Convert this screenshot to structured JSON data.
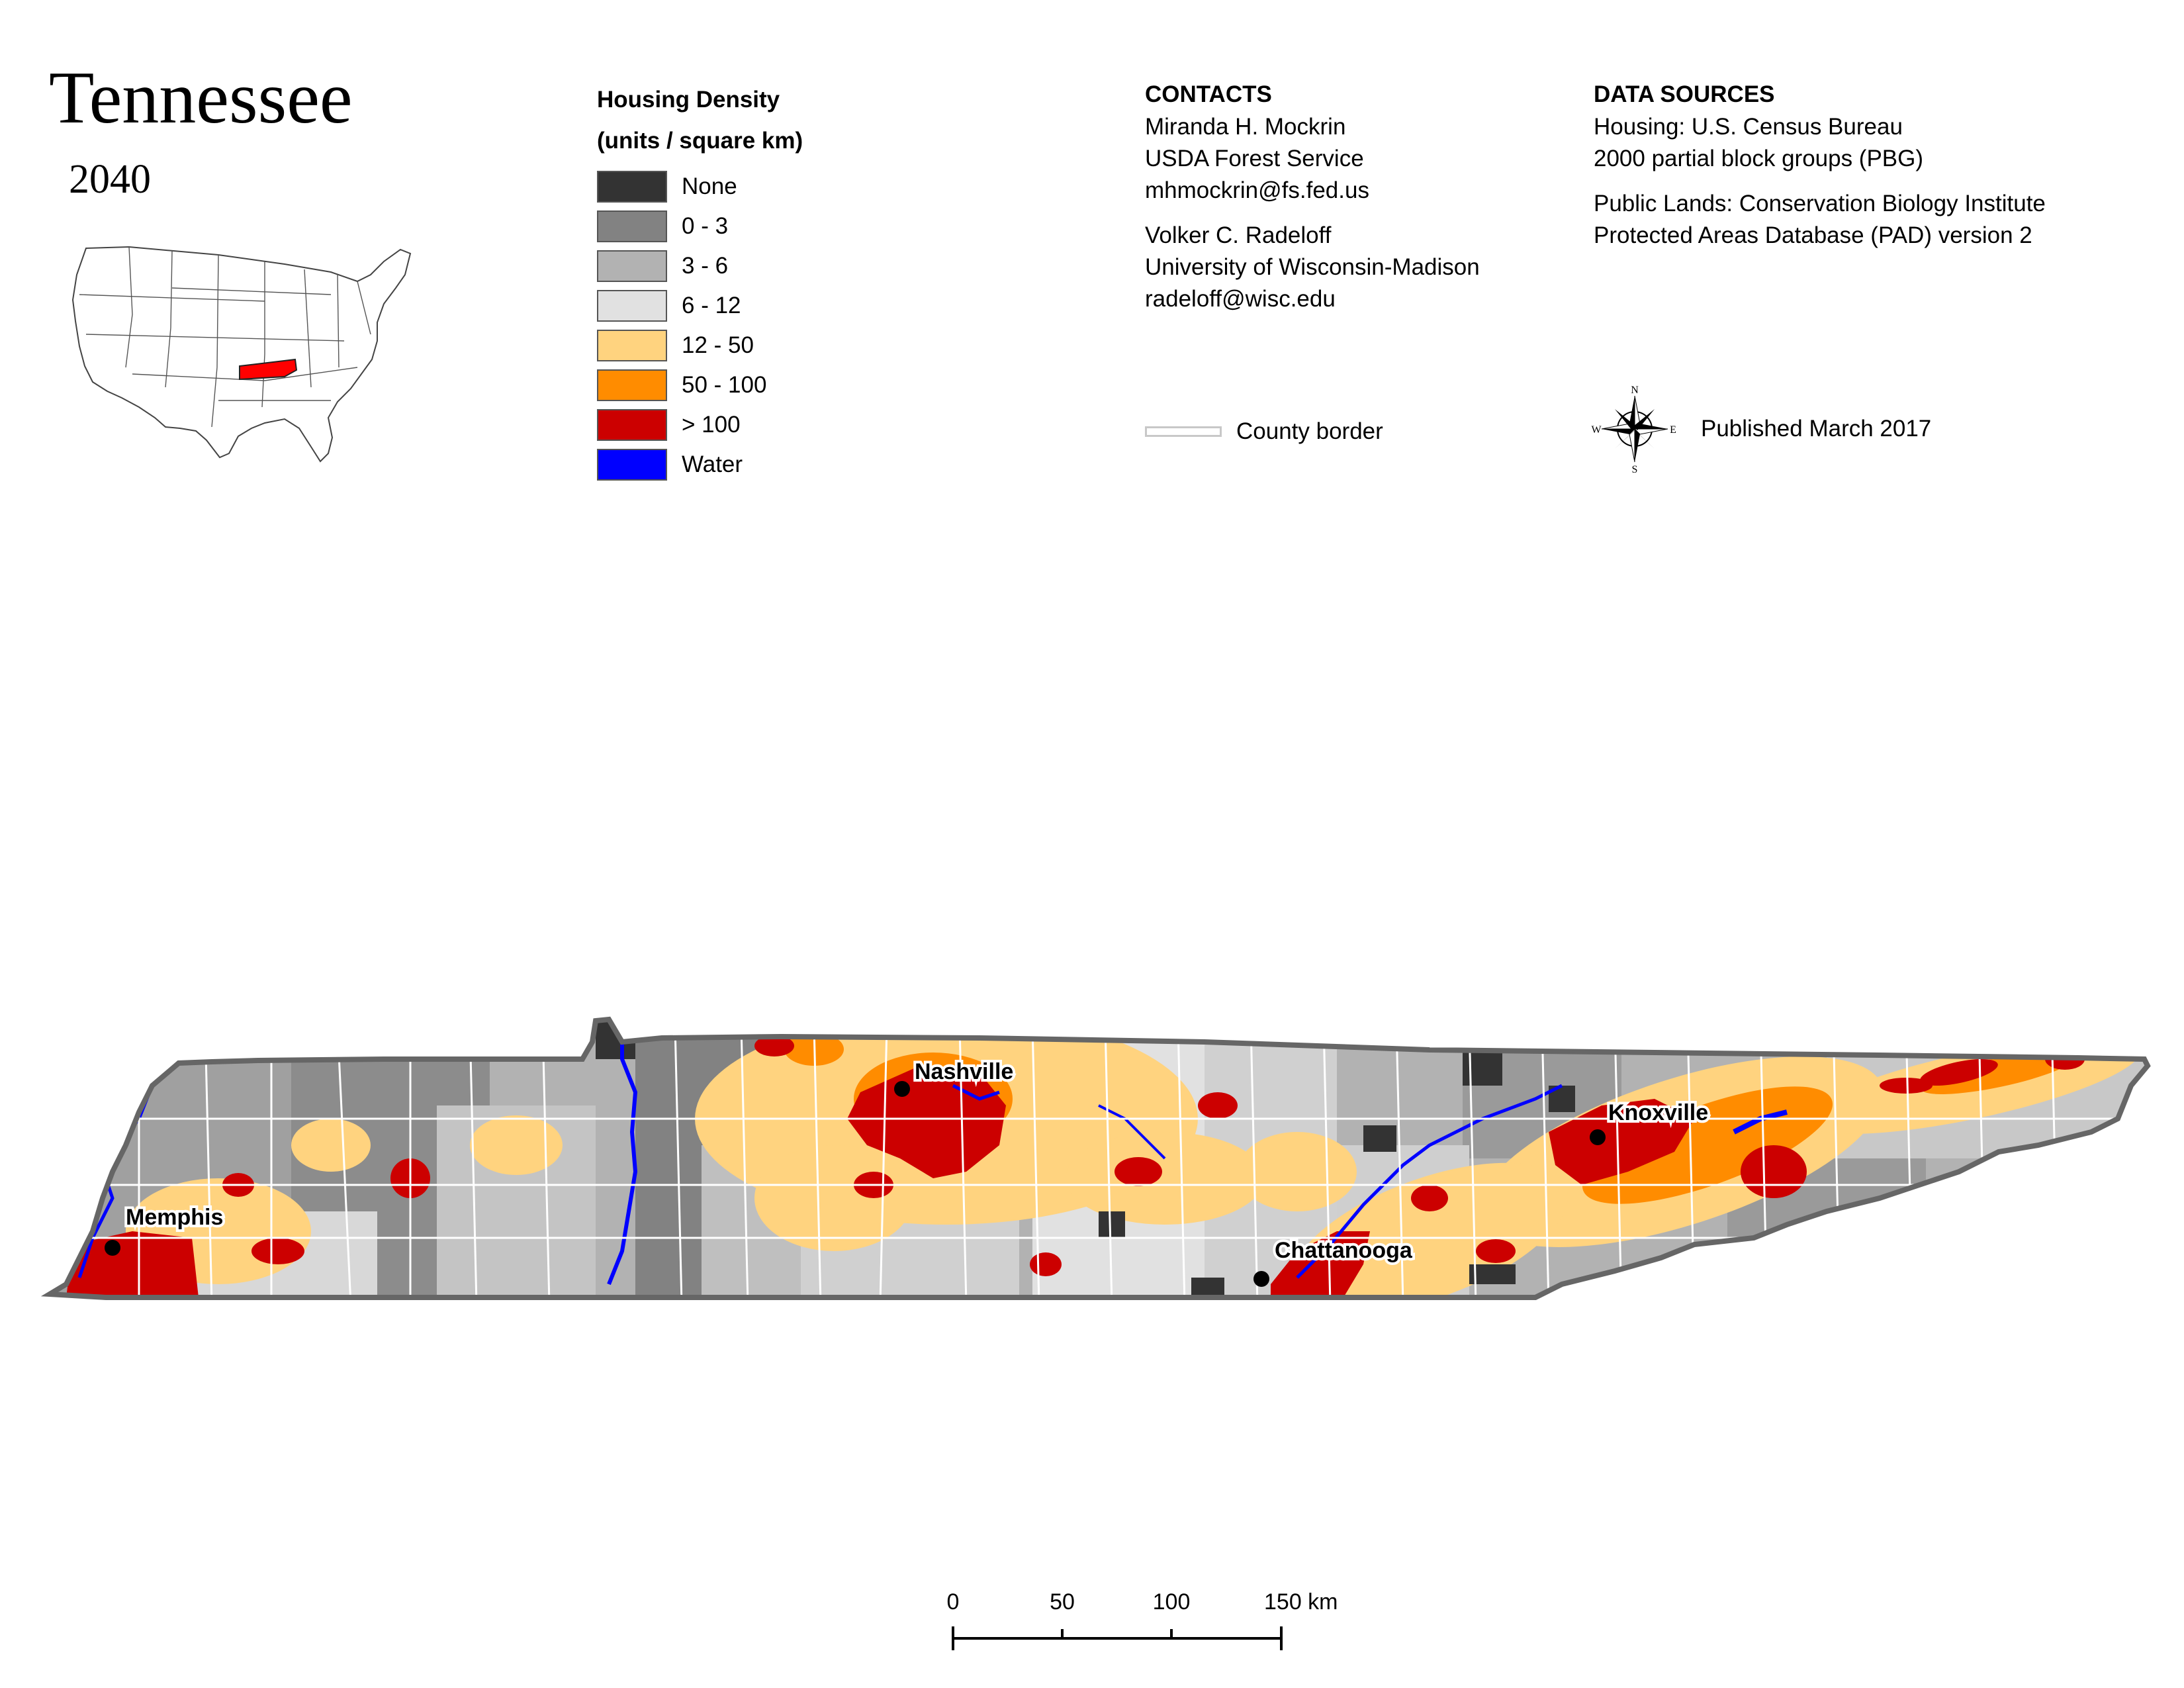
{
  "title": "Tennessee",
  "year": "2040",
  "legend": {
    "heading_1": "Housing Density",
    "heading_2": "(units / square km)",
    "items": [
      {
        "label": "None",
        "color": "#333333"
      },
      {
        "label": "0 - 3",
        "color": "#828282"
      },
      {
        "label": "3 - 6",
        "color": "#b2b2b2"
      },
      {
        "label": "6 - 12",
        "color": "#e1e1e1"
      },
      {
        "label": "12 - 50",
        "color": "#ffd37f"
      },
      {
        "label": "50 - 100",
        "color": "#ff8c00"
      },
      {
        "label": "> 100",
        "color": "#cc0000"
      },
      {
        "label": "Water",
        "color": "#0000ff"
      }
    ]
  },
  "contacts": {
    "heading": "CONTACTS",
    "person1": {
      "name": "Miranda H. Mockrin",
      "org": "USDA Forest Service",
      "email": "mhmockrin@fs.fed.us"
    },
    "person2": {
      "name": "Volker C. Radeloff",
      "org": "University of Wisconsin-Madison",
      "email": "radeloff@wisc.edu"
    }
  },
  "sources": {
    "heading": "DATA SOURCES",
    "housing_1": "Housing: U.S. Census Bureau",
    "housing_2": "2000 partial block groups (PBG)",
    "lands_1": "Public Lands: Conservation Biology Institute",
    "lands_2": "Protected Areas Database (PAD) version 2"
  },
  "county_border_label": "County border",
  "published": "Published March 2017",
  "compass": {
    "n": "N",
    "s": "S",
    "e": "E",
    "w": "W"
  },
  "cities": [
    {
      "name": "Nashville"
    },
    {
      "name": "Knoxville"
    },
    {
      "name": "Memphis"
    },
    {
      "name": "Chattanooga"
    }
  ],
  "scale_bar": {
    "ticks": [
      "0",
      "50",
      "100",
      "150 km"
    ]
  },
  "inset": {
    "highlight_color": "#ff0000"
  }
}
